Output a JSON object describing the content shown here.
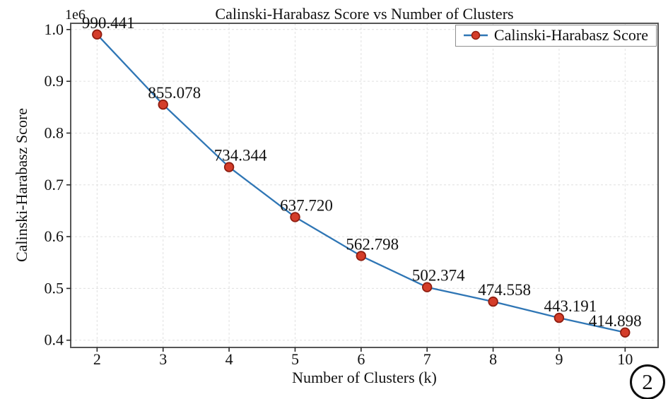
{
  "figure": {
    "number_label": "2"
  },
  "chart_data": {
    "type": "line",
    "title": "Calinski-Harabasz Score vs Number of Clusters",
    "xlabel": "Number of Clusters (k)",
    "ylabel": "Calinski-Harabasz Score",
    "y_offset_label": "1e6",
    "legend": {
      "label": "Calinski-Harabasz Score",
      "position": "upper right"
    },
    "x": [
      2,
      3,
      4,
      5,
      6,
      7,
      8,
      9,
      10
    ],
    "values": [
      990441,
      855078,
      734344,
      637720,
      562798,
      502374,
      474558,
      443191,
      414898
    ],
    "point_labels": [
      "990.441",
      "855.078",
      "734.344",
      "637.720",
      "562.798",
      "502.374",
      "474.558",
      "443.191",
      "414.898"
    ],
    "x_ticks": {
      "values": [
        2,
        3,
        4,
        5,
        6,
        7,
        8,
        9,
        10
      ],
      "labels": [
        "2",
        "3",
        "4",
        "5",
        "6",
        "7",
        "8",
        "9",
        "10"
      ]
    },
    "y_ticks": {
      "values": [
        1000000,
        900000,
        800000,
        700000,
        600000,
        500000,
        400000
      ],
      "labels": [
        "1.0",
        "0.9",
        "0.8",
        "0.7",
        "0.6",
        "0.5",
        "0.4"
      ]
    },
    "xlim": [
      1.6,
      10.5
    ],
    "ylim": [
      386000,
      1012000
    ],
    "grid": true,
    "colors": {
      "line": "#2f76b5",
      "marker_face": "#d43d2a",
      "marker_edge": "#8f1d10",
      "grid": "#e0e0e0",
      "spine": "#565656",
      "tick": "#2a2a2a",
      "text": "#111111"
    }
  }
}
